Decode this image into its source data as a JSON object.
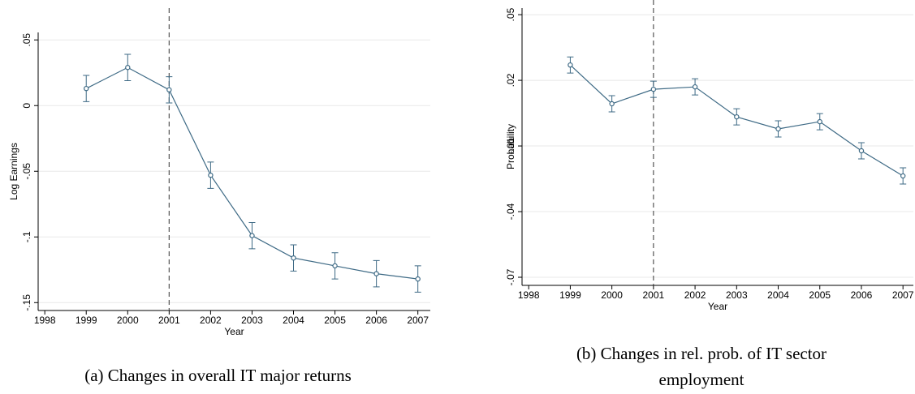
{
  "chart_data": [
    {
      "type": "line",
      "caption": "(a) Changes in overall IT major returns",
      "xlabel": "Year",
      "ylabel": "Log Earnings",
      "x": [
        1999,
        2000,
        2001,
        2002,
        2003,
        2004,
        2005,
        2006,
        2007
      ],
      "values": [
        0.013,
        0.029,
        0.012,
        -0.053,
        -0.099,
        -0.116,
        -0.122,
        -0.128,
        -0.132
      ],
      "errors": [
        0.01,
        0.01,
        0.01,
        0.01,
        0.01,
        0.01,
        0.01,
        0.01,
        0.01
      ],
      "color": "#3e6a85",
      "vline": 2001,
      "grid": true,
      "xlim": [
        1997.84,
        2007.3
      ],
      "xticks": [
        1998,
        1999,
        2000,
        2001,
        2002,
        2003,
        2004,
        2005,
        2006,
        2007
      ],
      "ylim": [
        -0.156,
        0.0557
      ],
      "yticks": [
        {
          "value": -0.15,
          "label": "-.15"
        },
        {
          "value": -0.1,
          "label": "-.1"
        },
        {
          "value": -0.05,
          "label": "-.05"
        },
        0,
        {
          "value": 0.05,
          "label": ".05"
        }
      ]
    },
    {
      "type": "line",
      "caption": "(b) Changes in rel. prob. of IT sector employment",
      "xlabel": "Year",
      "ylabel": "Probability",
      "x": [
        1999,
        2000,
        2001,
        2002,
        2003,
        2004,
        2005,
        2006,
        2007
      ],
      "values": [
        0.027,
        0.0093,
        0.0159,
        0.017,
        0.0033,
        -0.0022,
        0.0011,
        -0.0122,
        -0.0237
      ],
      "errors": [
        0.0037,
        0.0037,
        0.0037,
        0.0037,
        0.0037,
        0.0037,
        0.0037,
        0.0037,
        0.0037
      ],
      "color": "#3e6a85",
      "vline": 2001,
      "grid": true,
      "xlim": [
        1997.84,
        2007.25
      ],
      "xticks": [
        1998,
        1999,
        2000,
        2001,
        2002,
        2003,
        2004,
        2005,
        2006,
        2007
      ],
      "ylim": [
        -0.0737,
        0.053
      ],
      "yticks": [
        {
          "value": -0.07,
          "label": "-.07"
        },
        {
          "value": -0.04,
          "label": "-.04"
        },
        {
          "value": -0.01,
          "label": "-.01"
        },
        {
          "value": 0.02,
          "label": ".02"
        },
        {
          "value": 0.05,
          "label": ".05"
        }
      ]
    }
  ]
}
